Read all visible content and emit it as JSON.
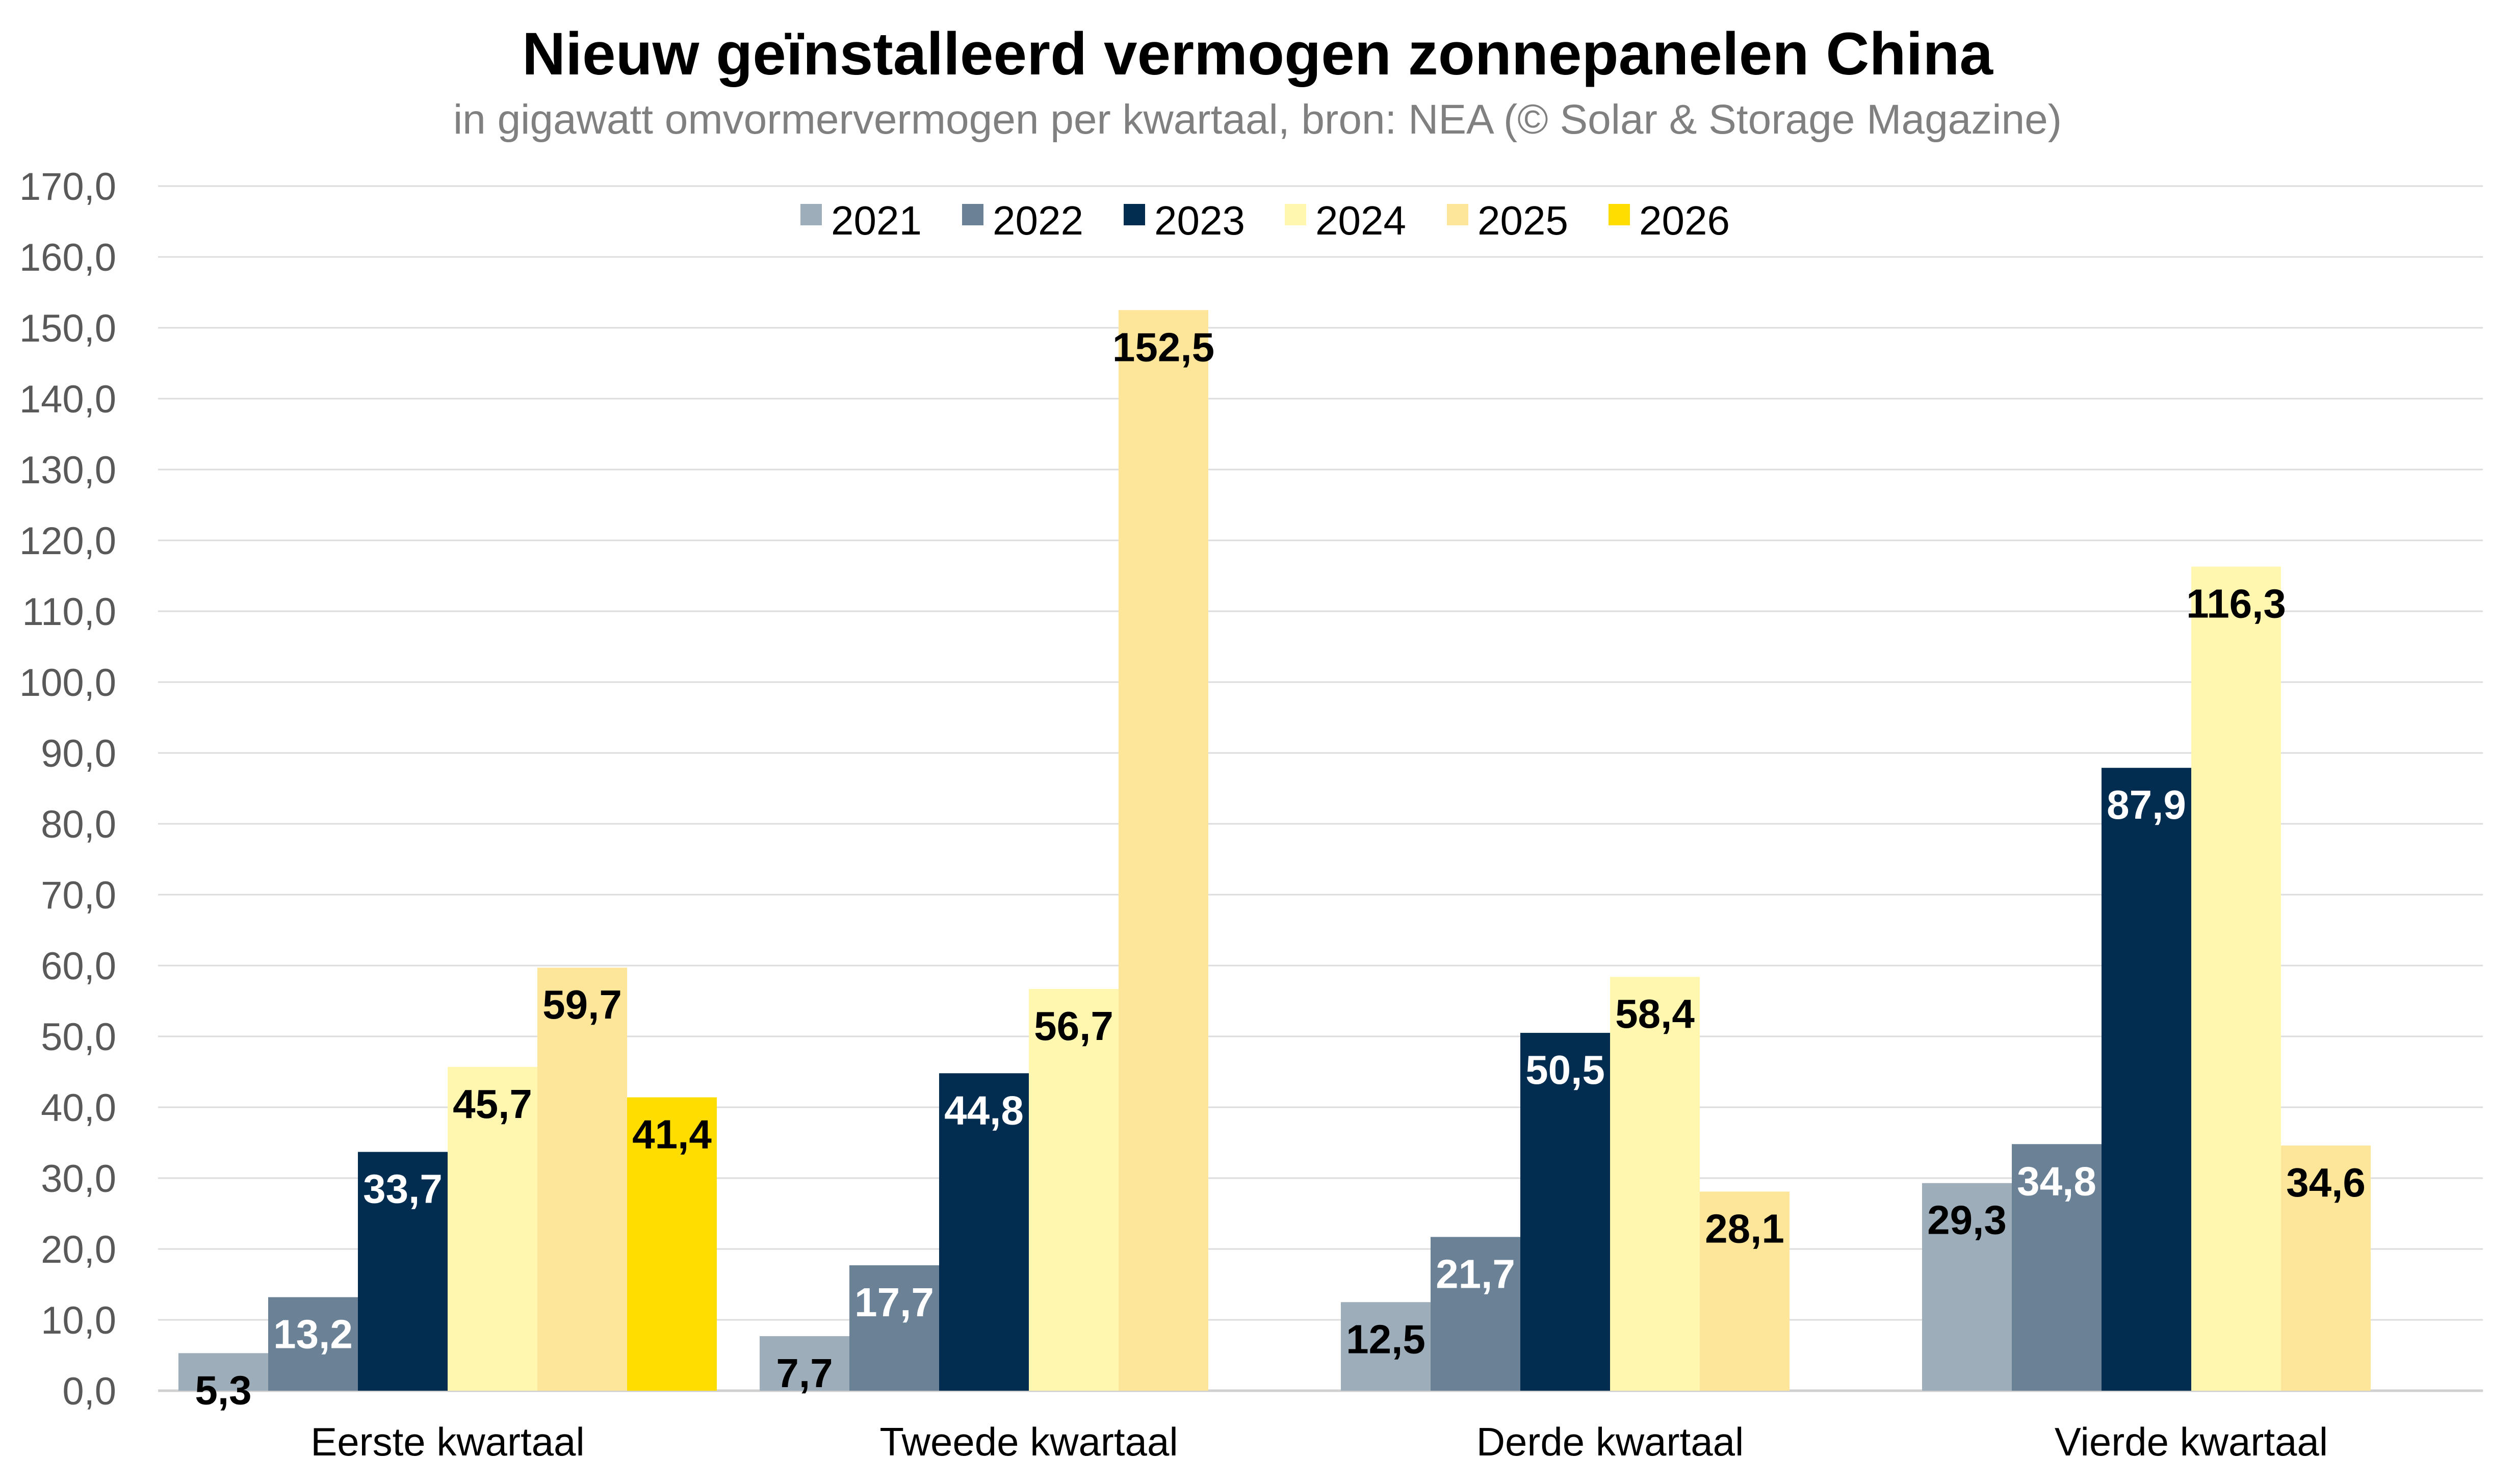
{
  "chart_data": {
    "type": "bar",
    "title": "Nieuw geïnstalleerd vermogen zonnepanelen China",
    "subtitle": "in gigawatt omvormervermogen per kwartaal, bron: NEA (© Solar & Storage Magazine)",
    "xlabel": "",
    "ylabel": "",
    "ylim": [
      0,
      170
    ],
    "ytick_step": 10,
    "yticks": [
      "0,0",
      "10,0",
      "20,0",
      "30,0",
      "40,0",
      "50,0",
      "60,0",
      "70,0",
      "80,0",
      "90,0",
      "100,0",
      "110,0",
      "120,0",
      "130,0",
      "140,0",
      "150,0",
      "160,0",
      "170,0"
    ],
    "grid": true,
    "legend_position": "top-center",
    "categories": [
      "Eerste kwartaal",
      "Tweede kwartaal",
      "Derde kwartaal",
      "Vierde kwartaal"
    ],
    "series": [
      {
        "name": "2021",
        "color": "#9DADBA",
        "label_color": "#000000",
        "values": [
          5.3,
          7.7,
          12.5,
          29.3
        ],
        "labels": [
          "5,3",
          "7,7",
          "12,5",
          "29,3"
        ]
      },
      {
        "name": "2022",
        "color": "#6A8196",
        "label_color": "#ffffff",
        "values": [
          13.2,
          17.7,
          21.7,
          34.8
        ],
        "labels": [
          "13,2",
          "17,7",
          "21,7",
          "34,8"
        ]
      },
      {
        "name": "2023",
        "color": "#022D50",
        "label_color": "#ffffff",
        "values": [
          33.7,
          44.8,
          50.5,
          87.9
        ],
        "labels": [
          "33,7",
          "44,8",
          "50,5",
          "87,9"
        ]
      },
      {
        "name": "2024",
        "color": "#FFF7B0",
        "label_color": "#000000",
        "values": [
          45.7,
          56.7,
          58.4,
          116.3
        ],
        "labels": [
          "45,7",
          "56,7",
          "58,4",
          "116,3"
        ]
      },
      {
        "name": "2025",
        "color": "#FDE699",
        "label_color": "#000000",
        "values": [
          59.7,
          152.5,
          28.1,
          34.6
        ],
        "labels": [
          "59,7",
          "152,5",
          "28,1",
          "34,6"
        ]
      },
      {
        "name": "2026",
        "color": "#FFDD00",
        "label_color": "#000000",
        "values": [
          41.4,
          null,
          null,
          null
        ],
        "labels": [
          "41,4",
          null,
          null,
          null
        ]
      }
    ]
  }
}
